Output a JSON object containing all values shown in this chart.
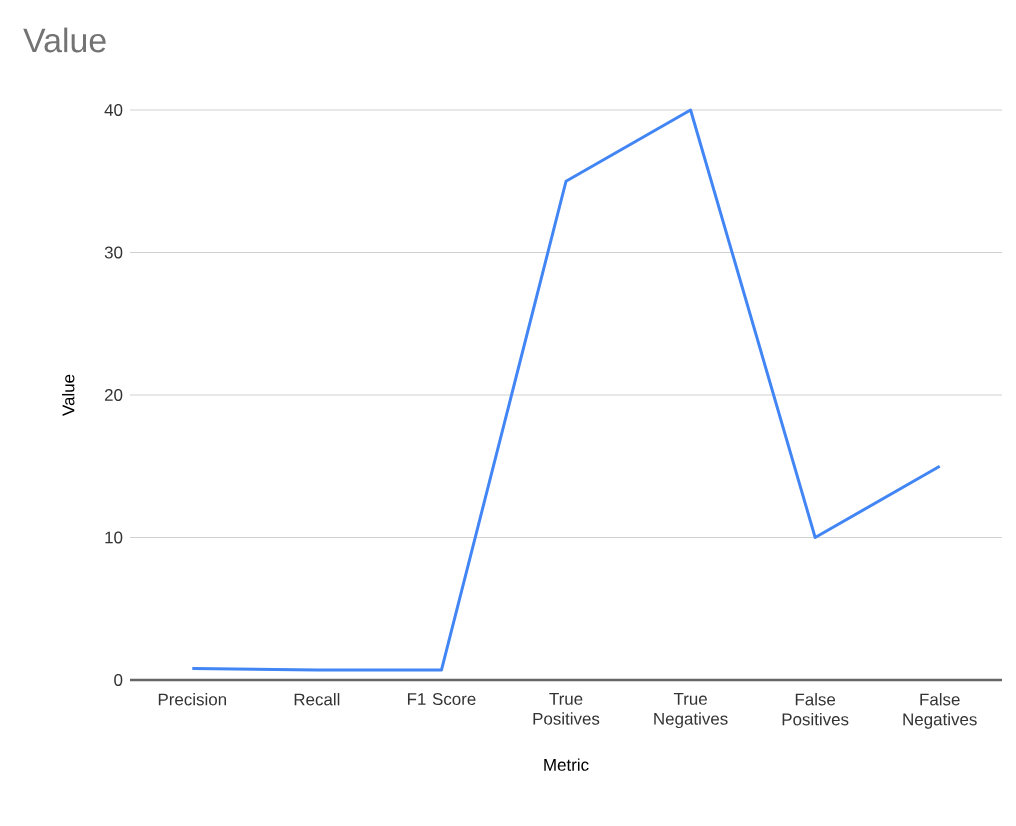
{
  "chart_data": {
    "type": "line",
    "title": "Value",
    "xlabel": "Metric",
    "ylabel": "Value",
    "categories": [
      "Precision",
      "Recall",
      "F1 Score",
      "True Positives",
      "True Negatives",
      "False Positives",
      "False Negatives"
    ],
    "series": [
      {
        "color": "#4285f4",
        "values": [
          0.8,
          0.7,
          0.7,
          35,
          40,
          10,
          15
        ]
      }
    ],
    "ylim": [
      0,
      40
    ],
    "yticks": [
      0,
      10,
      20,
      30,
      40
    ],
    "grid": "y",
    "marker": "none",
    "line_style": "solid"
  }
}
